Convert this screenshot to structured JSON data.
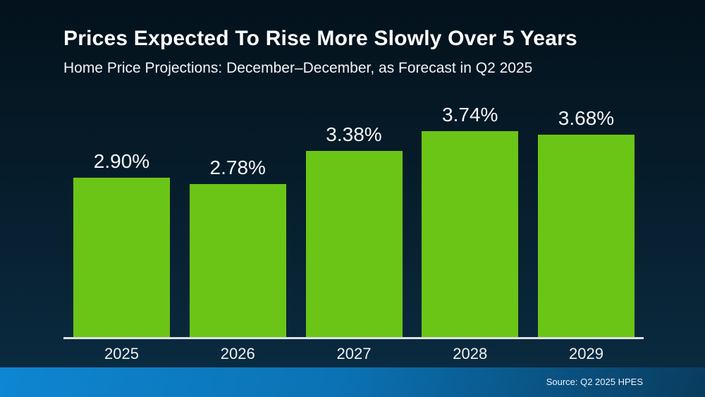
{
  "header": {
    "title": "Prices Expected To Rise More Slowly Over 5 Years",
    "subtitle": "Home Price Projections: December–December, as Forecast in Q2 2025"
  },
  "chart_data": {
    "type": "bar",
    "title": "Prices Expected To Rise More Slowly Over 5 Years",
    "subtitle": "Home Price Projections: December–December, as Forecast in Q2 2025",
    "categories": [
      "2025",
      "2026",
      "2027",
      "2028",
      "2029"
    ],
    "values": [
      2.9,
      2.78,
      3.38,
      3.74,
      3.68
    ],
    "labels": [
      "2.90%",
      "2.78%",
      "3.38%",
      "3.74%",
      "3.68%"
    ],
    "unit": "percent",
    "xlabel": "",
    "ylabel": "",
    "ylim": [
      0,
      4
    ],
    "grid": false,
    "legend": "none",
    "bar_color": "#6bc516",
    "background_top": "#03121c",
    "background_bottom": "#0b2c42",
    "axis_line_color": "#dde1e4",
    "label_color": "#f4f7f9"
  },
  "footer": {
    "source_label": "Source: Q2 2025 HPES",
    "bar_color_left": "#0e86d1",
    "bar_color_right": "#093c5e"
  }
}
